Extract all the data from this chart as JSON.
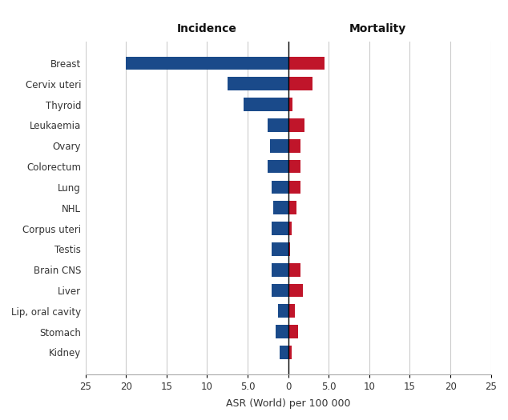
{
  "categories": [
    "Breast",
    "Cervix uteri",
    "Thyroid",
    "Leukaemia",
    "Ovary",
    "Colorectum",
    "Lung",
    "NHL",
    "Corpus uteri",
    "Testis",
    "Brain CNS",
    "Liver",
    "Lip, oral cavity",
    "Stomach",
    "Kidney"
  ],
  "incidence": [
    20.0,
    7.5,
    5.5,
    2.5,
    2.2,
    2.5,
    2.0,
    1.8,
    2.0,
    2.0,
    2.0,
    2.0,
    1.2,
    1.5,
    1.0
  ],
  "mortality": [
    4.5,
    3.0,
    0.5,
    2.0,
    1.5,
    1.5,
    1.5,
    1.0,
    0.4,
    0.2,
    1.5,
    1.8,
    0.8,
    1.2,
    0.4
  ],
  "incidence_color": "#1a4a8a",
  "mortality_color": "#c0152a",
  "background_color": "#ffffff",
  "grid_color": "#cccccc",
  "title_incidence": "Incidence",
  "title_mortality": "Mortality",
  "xlabel": "ASR (World) per 100 000",
  "xlim": 25,
  "tick_positions": [
    -25,
    -20,
    -15,
    -10,
    -5,
    0,
    5,
    10,
    15,
    20,
    25
  ],
  "tick_labels": [
    "25",
    "20",
    "15",
    "10",
    "5.0",
    "0",
    "5.0",
    "10",
    "15",
    "20",
    "25"
  ]
}
